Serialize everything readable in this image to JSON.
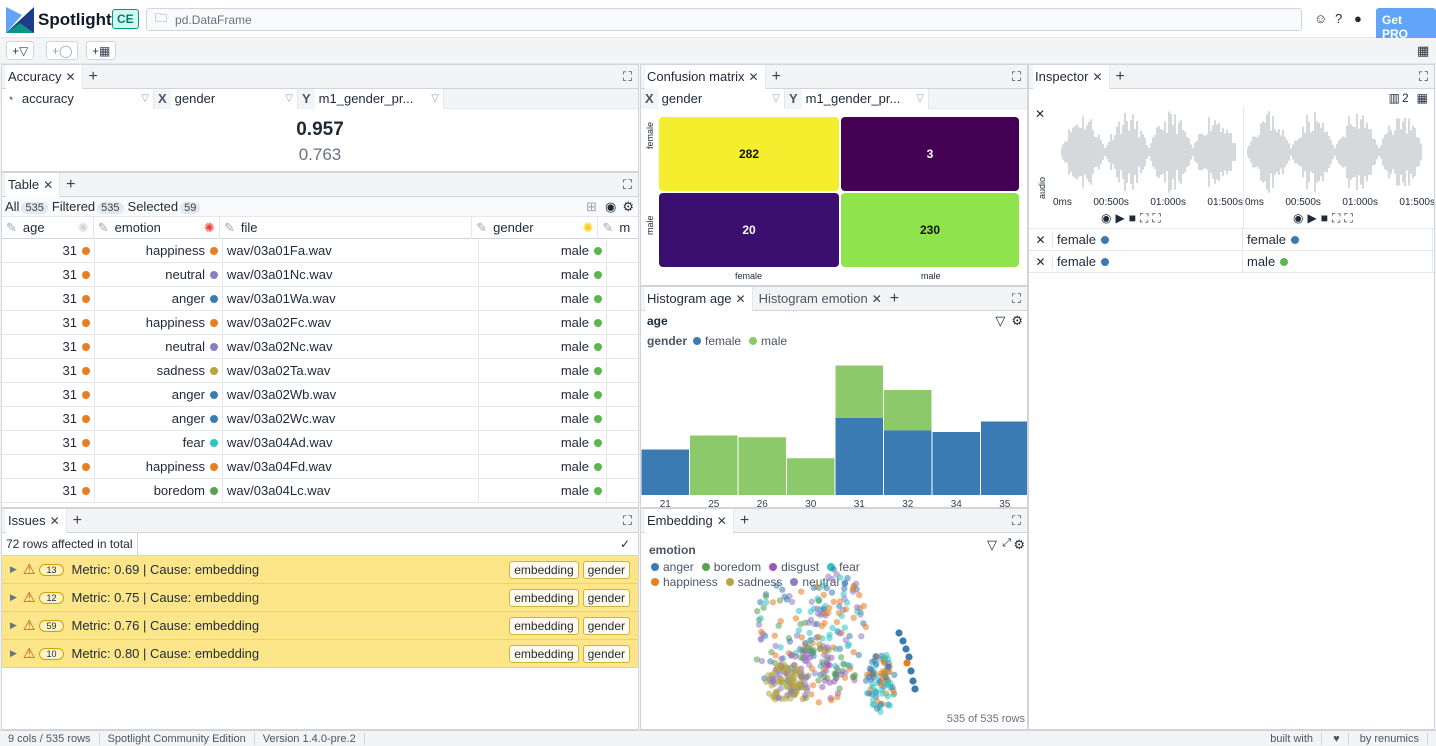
{
  "app": {
    "name": "Spotlight",
    "edition_badge": "CE",
    "dataframe": "pd.DataFrame",
    "get_pro": "Get PRO"
  },
  "toolbar": {
    "add_filter": "+",
    "add_tag": "+",
    "add_layout": "+"
  },
  "accuracy": {
    "tab": "Accuracy",
    "metric": "accuracy",
    "x_label": "X",
    "x_value": "gender",
    "y_label": "Y",
    "y_value": "m1_gender_pr...",
    "value_main": "0.957",
    "value_sub": "0.763"
  },
  "table": {
    "tab": "Table",
    "all_label": "All",
    "all_count": "535",
    "filtered_label": "Filtered",
    "filtered_count": "535",
    "selected_label": "Selected",
    "selected_count": "59",
    "columns": [
      "age",
      "emotion",
      "file",
      "gender",
      "m"
    ],
    "rows": [
      {
        "age": "31",
        "emotion": "happiness",
        "file": "wav/03a01Fa.wav",
        "gender": "male"
      },
      {
        "age": "31",
        "emotion": "neutral",
        "file": "wav/03a01Nc.wav",
        "gender": "male"
      },
      {
        "age": "31",
        "emotion": "anger",
        "file": "wav/03a01Wa.wav",
        "gender": "male"
      },
      {
        "age": "31",
        "emotion": "happiness",
        "file": "wav/03a02Fc.wav",
        "gender": "male"
      },
      {
        "age": "31",
        "emotion": "neutral",
        "file": "wav/03a02Nc.wav",
        "gender": "male"
      },
      {
        "age": "31",
        "emotion": "sadness",
        "file": "wav/03a02Ta.wav",
        "gender": "male"
      },
      {
        "age": "31",
        "emotion": "anger",
        "file": "wav/03a02Wb.wav",
        "gender": "male"
      },
      {
        "age": "31",
        "emotion": "anger",
        "file": "wav/03a02Wc.wav",
        "gender": "male"
      },
      {
        "age": "31",
        "emotion": "fear",
        "file": "wav/03a04Ad.wav",
        "gender": "male"
      },
      {
        "age": "31",
        "emotion": "happiness",
        "file": "wav/03a04Fd.wav",
        "gender": "male"
      },
      {
        "age": "31",
        "emotion": "boredom",
        "file": "wav/03a04Lc.wav",
        "gender": "male"
      }
    ]
  },
  "issues": {
    "tab": "Issues",
    "summary": "72 rows affected in total",
    "items": [
      {
        "count": "13",
        "text": "Metric: 0.69 | Cause: embedding",
        "tags": [
          "embedding",
          "gender"
        ]
      },
      {
        "count": "12",
        "text": "Metric: 0.75 | Cause: embedding",
        "tags": [
          "embedding",
          "gender"
        ]
      },
      {
        "count": "59",
        "text": "Metric: 0.76 | Cause: embedding",
        "tags": [
          "embedding",
          "gender"
        ]
      },
      {
        "count": "10",
        "text": "Metric: 0.80 | Cause: embedding",
        "tags": [
          "embedding",
          "gender"
        ]
      }
    ]
  },
  "confusion": {
    "tab": "Confusion matrix",
    "x_label": "X",
    "x_value": "gender",
    "y_label": "Y",
    "y_value": "m1_gender_pr...",
    "row_labels": [
      "female",
      "male"
    ],
    "col_labels": [
      "female",
      "male"
    ],
    "cells": [
      [
        "282",
        "3"
      ],
      [
        "20",
        "230"
      ]
    ],
    "colors": [
      [
        "#f5ee2f",
        "#440154"
      ],
      [
        "#3b0f70",
        "#8fe34b"
      ]
    ]
  },
  "histogram": {
    "tab_active": "Histogram age",
    "tab_other": "Histogram emotion",
    "title": "age",
    "legend_title": "gender",
    "legend": [
      {
        "name": "female",
        "color": "#3b7bb4"
      },
      {
        "name": "male",
        "color": "#8cc96a"
      }
    ]
  },
  "chart_data": {
    "type": "bar",
    "categories": [
      "21",
      "25",
      "26",
      "30",
      "31",
      "32",
      "34",
      "35"
    ],
    "series": [
      {
        "name": "female",
        "values": [
          26,
          0,
          0,
          0,
          44,
          37,
          36,
          42
        ]
      },
      {
        "name": "male",
        "values": [
          0,
          34,
          33,
          21,
          30,
          23,
          0,
          0
        ]
      }
    ],
    "xlabel": "age",
    "stacked": true
  },
  "embedding": {
    "tab": "Embedding",
    "legend_title": "emotion",
    "legend": [
      {
        "name": "anger",
        "color": "#3b7bb4"
      },
      {
        "name": "boredom",
        "color": "#59a14f"
      },
      {
        "name": "disgust",
        "color": "#9b59b6"
      },
      {
        "name": "fear",
        "color": "#2ec4c4"
      },
      {
        "name": "happiness",
        "color": "#e67e22"
      },
      {
        "name": "sadness",
        "color": "#b5a642"
      },
      {
        "name": "neutral",
        "color": "#8e7cc3"
      }
    ],
    "row_count": "535 of 535 rows"
  },
  "inspector": {
    "tab": "Inspector",
    "columns_count": "2",
    "axis_label": "audio",
    "ticks": [
      "0ms",
      "00:500s",
      "01:000s",
      "01:500s"
    ],
    "ticks2": [
      "0ms",
      "00:500s",
      "01:000s",
      "01:500s"
    ],
    "rows": [
      [
        "female",
        "female"
      ],
      [
        "female",
        "male"
      ]
    ]
  },
  "status": {
    "shape": "9 cols / 535 rows",
    "edition": "Spotlight Community Edition",
    "version": "Version 1.4.0-pre.2",
    "built": "built with",
    "by": "by renumics"
  },
  "colors": {
    "female": "#3b7bb4",
    "male": "#59b84b",
    "anger": "#3b7bb4",
    "neutral": "#8e7cc3",
    "happiness": "#e67e22",
    "sadness": "#b5a642",
    "fear": "#2ec4c4",
    "boredom": "#59a14f",
    "age_dot": "#e67e22"
  }
}
